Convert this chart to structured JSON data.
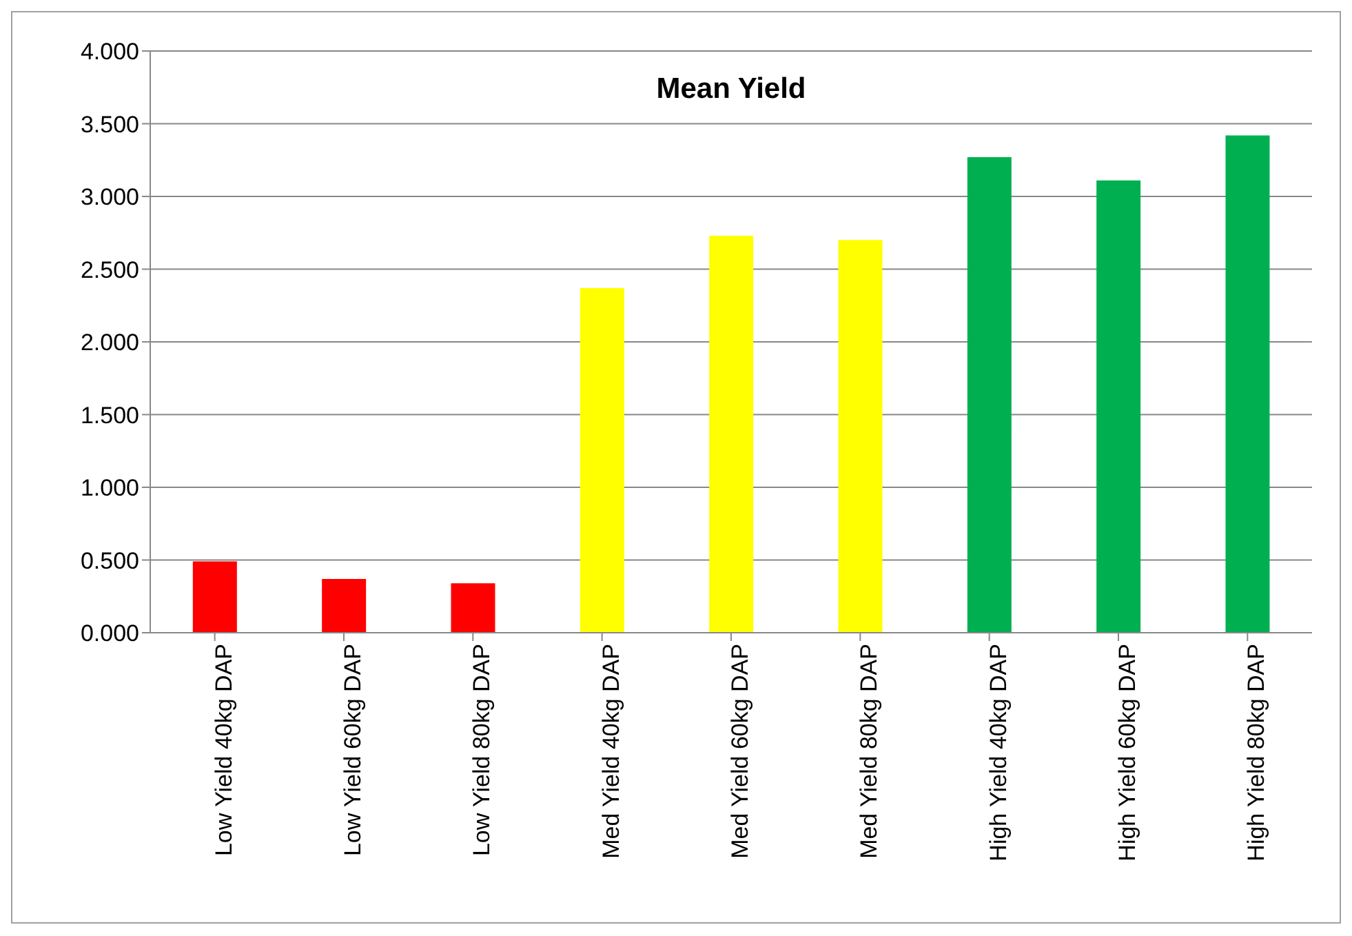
{
  "chart_data": {
    "type": "bar",
    "title": "Mean Yield",
    "categories": [
      "Low Yield 40kg DAP",
      "Low Yield 60kg DAP",
      "Low Yield 80kg DAP",
      "Med Yield 40kg DAP",
      "Med Yield 60kg DAP",
      "Med Yield 80kg DAP",
      "High Yield 40kg DAP",
      "High Yield 60kg DAP",
      "High Yield 80kg DAP"
    ],
    "values": [
      0.49,
      0.37,
      0.34,
      2.37,
      2.73,
      2.7,
      3.27,
      3.11,
      3.42
    ],
    "colors": [
      "#ff0000",
      "#ff0000",
      "#ff0000",
      "#ffff00",
      "#ffff00",
      "#ffff00",
      "#00b050",
      "#00b050",
      "#00b050"
    ],
    "ylim": [
      0,
      4
    ],
    "yticks": [
      {
        "value": 0,
        "label": "0.000"
      },
      {
        "value": 0.5,
        "label": "0.500"
      },
      {
        "value": 1,
        "label": "1.000"
      },
      {
        "value": 1.5,
        "label": "1.500"
      },
      {
        "value": 2,
        "label": "2.000"
      },
      {
        "value": 2.5,
        "label": "2.500"
      },
      {
        "value": 3,
        "label": "3.000"
      },
      {
        "value": 3.5,
        "label": "3.500"
      },
      {
        "value": 4,
        "label": "4.000"
      }
    ],
    "grid": "y"
  }
}
